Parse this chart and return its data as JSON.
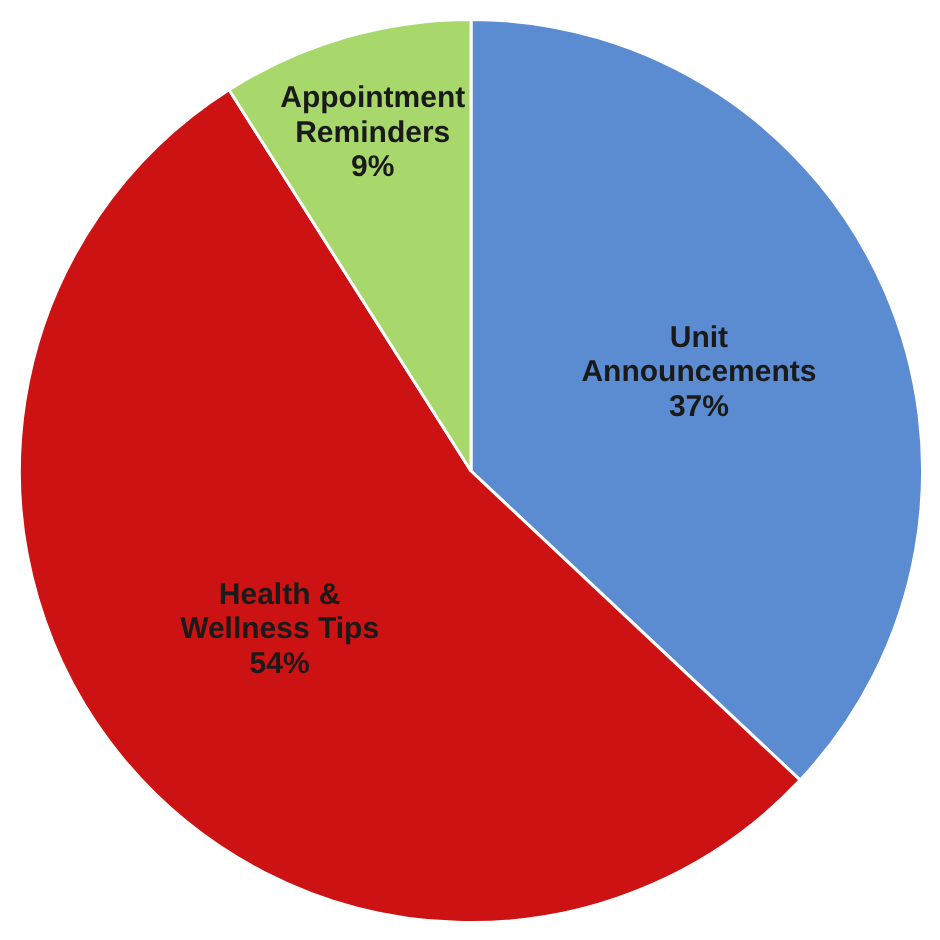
{
  "chart_data": {
    "type": "pie",
    "categories": [
      "Unit Announcements",
      "Health & Wellness Tips",
      "Appointment Reminders"
    ],
    "values": [
      37,
      54,
      9
    ],
    "colors": [
      "#5b8bd0",
      "#cc1212",
      "#a8d86c"
    ],
    "value_labels": [
      "37%",
      "54%",
      "9%"
    ]
  }
}
